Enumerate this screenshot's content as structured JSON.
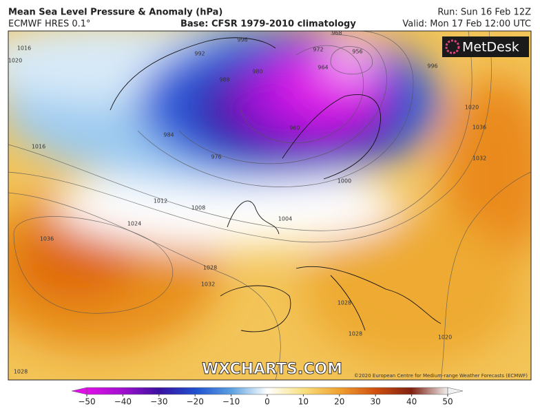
{
  "header": {
    "title": "Mean Sea Level Pressure & Anomaly (hPa)",
    "model": "ECMWF HRES 0.1°",
    "base": "Base: CFSR 1979-2010 climatology",
    "run": "Run: Sun 16 Feb 12Z",
    "valid": "Valid: Mon 17 Feb 12:00 UTC"
  },
  "logo": "MetDesk",
  "watermark": "WXCHARTS.COM",
  "copyright": "©2020 European Centre for Medium-range Weather Forecasts (ECMWF)",
  "isobar_labels": [
    "1016",
    "1020",
    "996",
    "992",
    "988",
    "980",
    "984",
    "976",
    "972",
    "968",
    "956",
    "964",
    "960",
    "996",
    "1020",
    "1036",
    "1032",
    "1016",
    "1012",
    "1008",
    "1024",
    "1036",
    "1028",
    "1032",
    "1000",
    "1004",
    "1028",
    "1028",
    "1020",
    "1028"
  ],
  "colorbar": {
    "min": -50,
    "max": 50,
    "ticks": [
      {
        "value": -50,
        "label": "−50"
      },
      {
        "value": -40,
        "label": "−40"
      },
      {
        "value": -30,
        "label": "−30"
      },
      {
        "value": -20,
        "label": "−20"
      },
      {
        "value": -10,
        "label": "−10"
      },
      0,
      10,
      20,
      30,
      40,
      50
    ]
  }
}
